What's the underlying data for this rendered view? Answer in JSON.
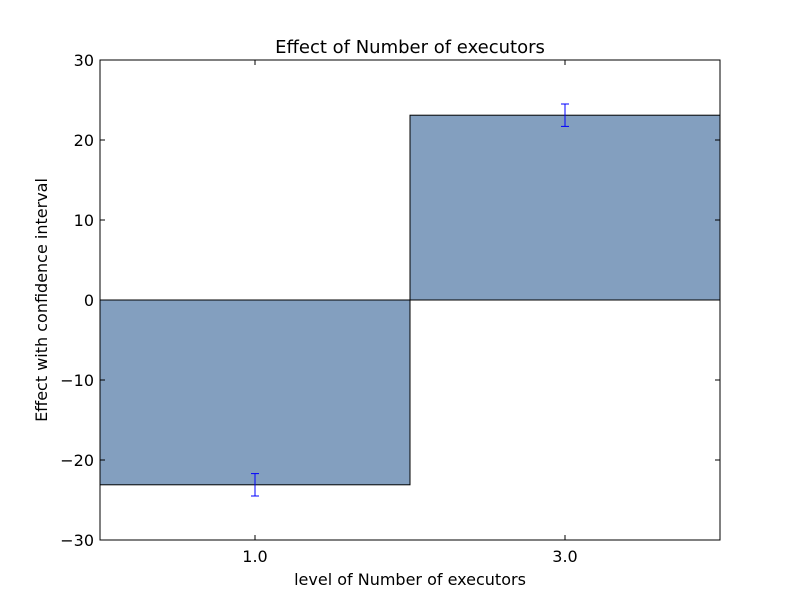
{
  "chart_data": {
    "type": "bar",
    "title": "Effect of Number of executors",
    "xlabel": "level of Number of executors",
    "ylabel": "Effect with confidence interval",
    "categories": [
      "1.0",
      "3.0"
    ],
    "values": [
      -23.1,
      23.1
    ],
    "error": [
      1.4,
      1.4
    ],
    "ylim": [
      -30,
      30
    ],
    "yticks": [
      -30,
      -20,
      -10,
      0,
      10,
      20,
      30
    ],
    "ytick_labels": [
      "−30",
      "−20",
      "−10",
      "0",
      "10",
      "20",
      "30"
    ],
    "bar_color": "#839fbf",
    "error_color": "#0000ff",
    "grid": false
  }
}
